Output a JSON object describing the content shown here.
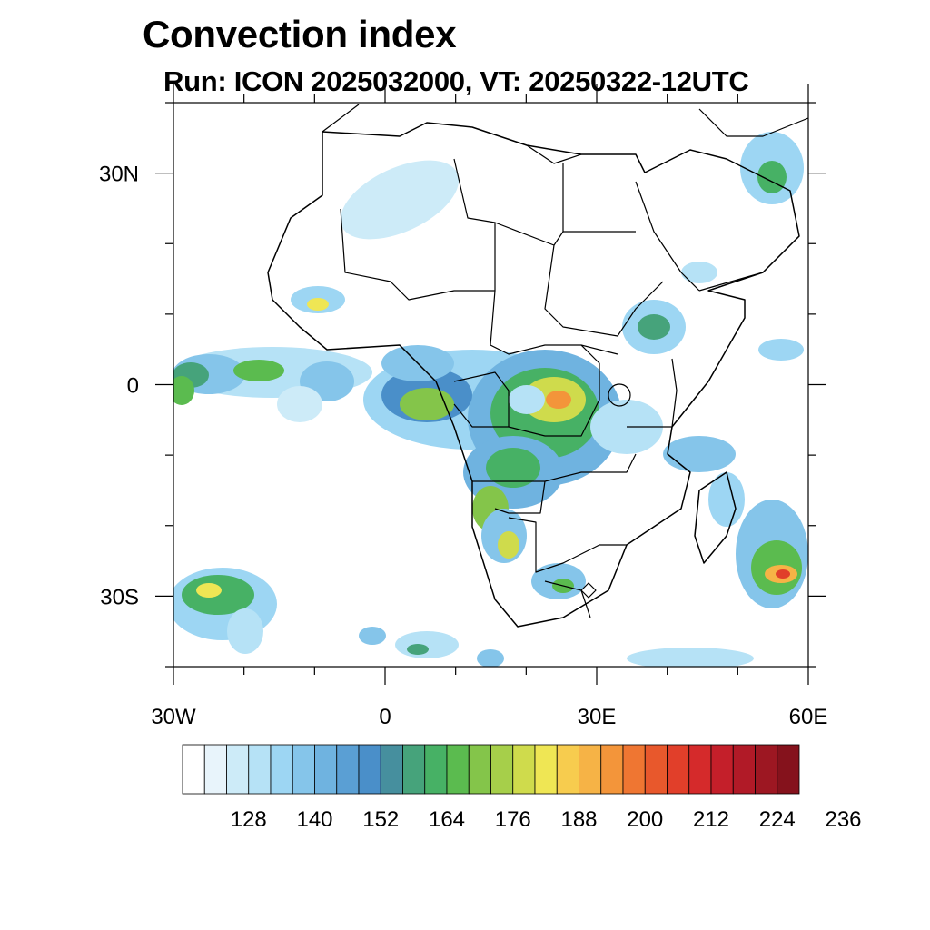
{
  "title": "Convection index",
  "subtitle": "Run: ICON 2025032000,  VT: 20250322-12UTC",
  "map": {
    "region": "Africa",
    "projection": "lat-lon",
    "lon_range": [
      -30,
      60
    ],
    "lat_range": [
      -40,
      40
    ],
    "lat_ticks": [
      {
        "value": 30,
        "label": "30N"
      },
      {
        "value": 0,
        "label": "0"
      },
      {
        "value": -30,
        "label": "30S"
      }
    ],
    "lon_ticks": [
      {
        "value": -30,
        "label": "30W"
      },
      {
        "value": 0,
        "label": "0"
      },
      {
        "value": 30,
        "label": "30E"
      },
      {
        "value": 60,
        "label": "60E"
      }
    ],
    "land_color": "#ffffff",
    "ocean_color": "#ffffff",
    "boundary_color": "#000000"
  },
  "colorbar": {
    "colors": [
      "#ffffff",
      "#e8f4fb",
      "#cdebf8",
      "#b6e2f6",
      "#9dd6f3",
      "#85c5ea",
      "#6fb3e0",
      "#5a9fd4",
      "#4a8fc9",
      "#468f9e",
      "#46a37b",
      "#47b165",
      "#5bbb4f",
      "#84c54a",
      "#a6cf4a",
      "#cfdb4c",
      "#efe654",
      "#f7cc4e",
      "#f6b346",
      "#f3953a",
      "#ef7632",
      "#e8582c",
      "#e13f2a",
      "#d52a2b",
      "#c41f2a",
      "#b11a27",
      "#9d1722",
      "#85121c"
    ],
    "tick_labels": [
      "128",
      "140",
      "152",
      "164",
      "176",
      "188",
      "200",
      "212",
      "224",
      "236"
    ]
  }
}
